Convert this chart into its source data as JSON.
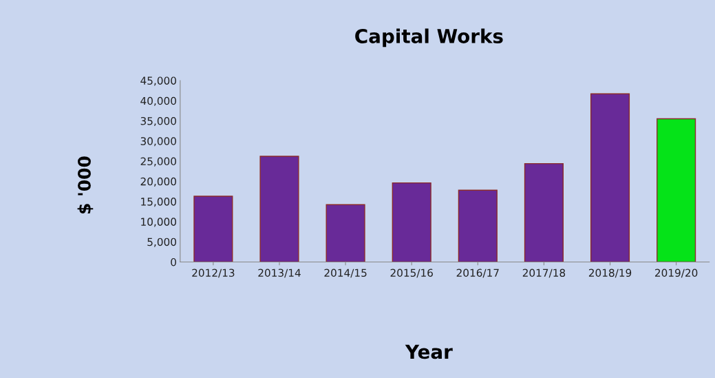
{
  "chart_data": {
    "type": "bar",
    "title": "Capital Works",
    "xlabel": "Year",
    "ylabel": "$ '000",
    "categories": [
      "2012/13",
      "2013/14",
      "2014/15",
      "2015/16",
      "2016/17",
      "2017/18",
      "2018/19",
      "2019/20"
    ],
    "values": [
      16300,
      26200,
      14200,
      19600,
      17800,
      24400,
      41700,
      35500
    ],
    "colors": [
      "#682a98",
      "#682a98",
      "#682a98",
      "#682a98",
      "#682a98",
      "#682a98",
      "#682a98",
      "#05e318"
    ],
    "ylim": [
      0,
      45000
    ],
    "yticks": [
      0,
      {
        "value": 5000,
        "label": "5,000"
      },
      {
        "value": 10000,
        "label": "10,000"
      },
      {
        "value": 15000,
        "label": "15,000"
      },
      {
        "value": 20000,
        "label": "20,000"
      },
      {
        "value": 25000,
        "label": "25,000"
      },
      {
        "value": 30000,
        "label": "30,000"
      },
      {
        "value": 35000,
        "label": "35,000"
      },
      {
        "value": 40000,
        "label": "40,000"
      },
      {
        "value": 45000,
        "label": "45,000"
      }
    ],
    "grid": false,
    "legend": false
  }
}
